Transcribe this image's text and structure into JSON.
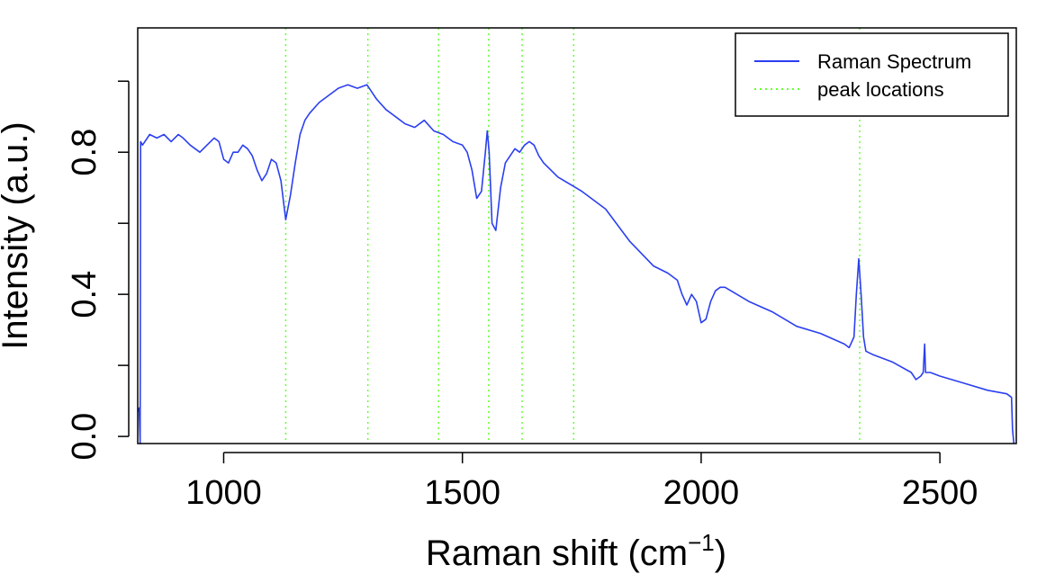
{
  "chart_data": {
    "type": "line",
    "title": "",
    "xlabel": "Raman shift (cm",
    "xlabel_superscript": "−1",
    "xlabel_suffix": ")",
    "ylabel": "Intensity (a.u.)",
    "xlim": [
      820,
      2660
    ],
    "ylim": [
      -0.02,
      1.15
    ],
    "x_ticks": [
      1000,
      1500,
      2000,
      2500
    ],
    "x_tick_labels": [
      "1000",
      "1500",
      "2000",
      "2500"
    ],
    "y_ticks": [
      0.0,
      0.2,
      0.4,
      0.6,
      0.8,
      1.0
    ],
    "y_tick_labels": [
      "0.0",
      "",
      "0.4",
      "",
      "0.8",
      ""
    ],
    "grid": false,
    "legend_position": "top-right",
    "series": [
      {
        "name": "Raman Spectrum",
        "color": "#2b3ff0",
        "style": "solid",
        "x": [
          820,
          823,
          825,
          826,
          830,
          845,
          860,
          875,
          890,
          905,
          915,
          930,
          950,
          965,
          980,
          990,
          1000,
          1010,
          1020,
          1030,
          1040,
          1050,
          1060,
          1070,
          1080,
          1090,
          1100,
          1110,
          1120,
          1130,
          1140,
          1150,
          1160,
          1170,
          1180,
          1200,
          1220,
          1240,
          1260,
          1280,
          1300,
          1310,
          1320,
          1340,
          1360,
          1380,
          1400,
          1420,
          1440,
          1460,
          1480,
          1500,
          1510,
          1520,
          1530,
          1540,
          1548,
          1552,
          1556,
          1562,
          1570,
          1580,
          1590,
          1600,
          1610,
          1620,
          1630,
          1640,
          1650,
          1660,
          1670,
          1700,
          1750,
          1800,
          1850,
          1900,
          1930,
          1950,
          1960,
          1970,
          1980,
          1990,
          2000,
          2010,
          2020,
          2030,
          2040,
          2050,
          2100,
          2150,
          2200,
          2250,
          2300,
          2310,
          2320,
          2325,
          2330,
          2335,
          2340,
          2345,
          2360,
          2400,
          2440,
          2450,
          2460,
          2465,
          2468,
          2470,
          2480,
          2500,
          2550,
          2600,
          2640,
          2650,
          2652,
          2655
        ],
        "values": [
          0.07,
          0.08,
          -0.02,
          0.83,
          0.82,
          0.85,
          0.84,
          0.85,
          0.83,
          0.85,
          0.84,
          0.82,
          0.8,
          0.82,
          0.84,
          0.83,
          0.78,
          0.77,
          0.8,
          0.8,
          0.82,
          0.81,
          0.79,
          0.75,
          0.72,
          0.74,
          0.78,
          0.77,
          0.72,
          0.61,
          0.68,
          0.77,
          0.85,
          0.89,
          0.91,
          0.94,
          0.96,
          0.98,
          0.99,
          0.98,
          0.99,
          0.97,
          0.95,
          0.92,
          0.9,
          0.88,
          0.87,
          0.89,
          0.86,
          0.85,
          0.83,
          0.82,
          0.8,
          0.75,
          0.67,
          0.69,
          0.8,
          0.86,
          0.8,
          0.6,
          0.58,
          0.7,
          0.77,
          0.79,
          0.81,
          0.8,
          0.82,
          0.83,
          0.82,
          0.79,
          0.77,
          0.73,
          0.69,
          0.64,
          0.55,
          0.48,
          0.46,
          0.44,
          0.4,
          0.37,
          0.4,
          0.38,
          0.32,
          0.33,
          0.38,
          0.41,
          0.42,
          0.42,
          0.38,
          0.35,
          0.31,
          0.29,
          0.26,
          0.25,
          0.28,
          0.4,
          0.5,
          0.4,
          0.28,
          0.24,
          0.23,
          0.21,
          0.18,
          0.16,
          0.17,
          0.18,
          0.26,
          0.18,
          0.18,
          0.17,
          0.15,
          0.13,
          0.12,
          0.11,
          0.02,
          -0.02
        ]
      },
      {
        "name": "peak locations",
        "color": "#66ff33",
        "style": "dotted",
        "type": "vlines",
        "x": [
          1130,
          1302,
          1450,
          1555,
          1625,
          1733,
          2332
        ]
      }
    ]
  }
}
